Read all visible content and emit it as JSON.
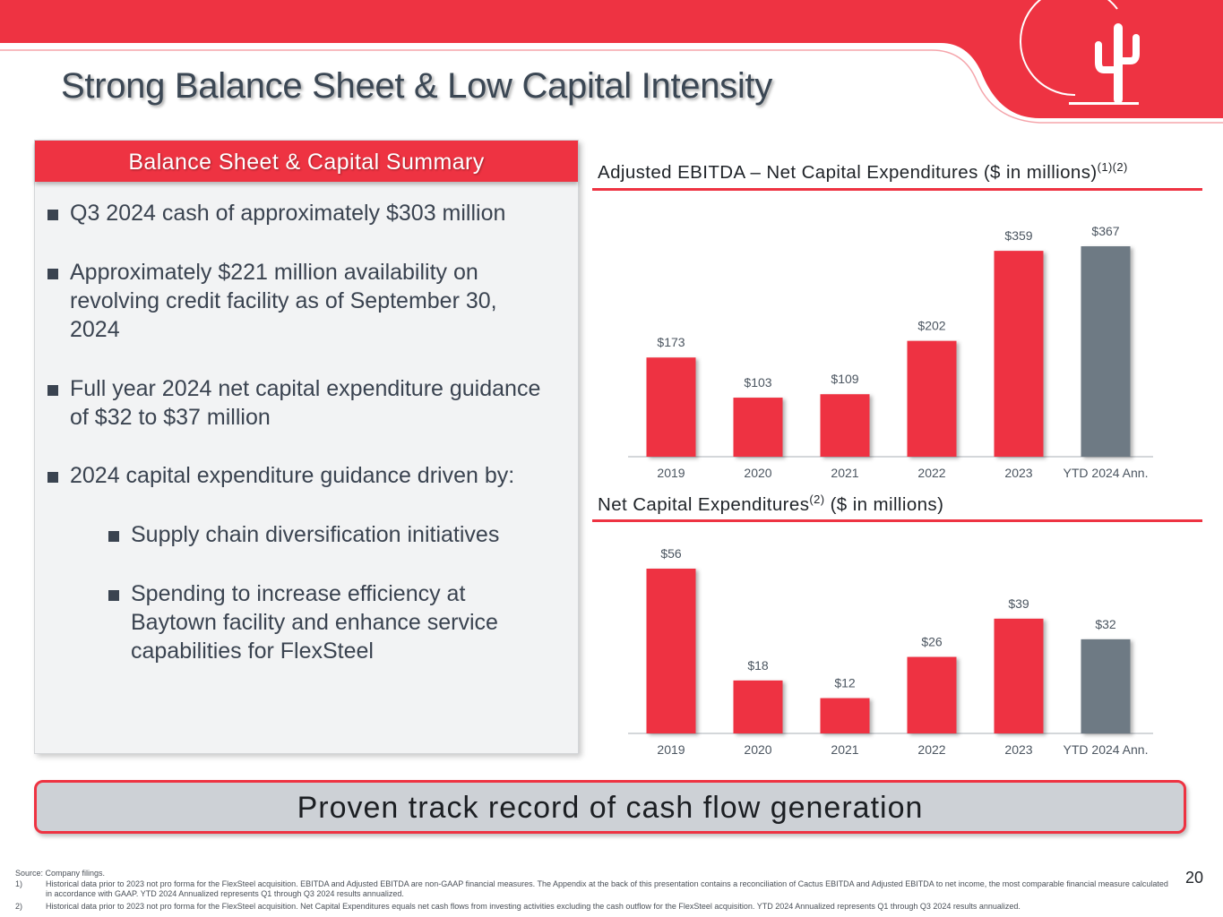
{
  "title": "Strong Balance Sheet & Low Capital Intensity",
  "colors": {
    "brand_red": "#ee3342",
    "gray_bar": "#6e7a84",
    "text": "#3a4350",
    "banner_bg": "#cdd1d6"
  },
  "logo": {
    "icon": "cactus-logo-icon"
  },
  "panel": {
    "header": "Balance Sheet & Capital Summary",
    "bullets": [
      {
        "lines": [
          "Q3 2024 cash of approximately $303 million"
        ]
      },
      {
        "lines": [
          "Approximately $221 million availability on",
          "revolving credit facility as of September 30,",
          "2024"
        ]
      },
      {
        "lines": [
          "Full year 2024 net capital expenditure guidance",
          "of $32 to $37 million"
        ]
      },
      {
        "lines": [
          "2024 capital expenditure guidance driven by:"
        ]
      }
    ],
    "sub_bullets": [
      {
        "lines": [
          "Supply chain diversification initiatives"
        ]
      },
      {
        "lines": [
          "Spending to increase efficiency at",
          "Baytown facility and enhance service",
          "capabilities for FlexSteel"
        ]
      }
    ]
  },
  "chart_data": [
    {
      "type": "bar",
      "title": "Adjusted EBITDA – Net Capital Expenditures ($ in millions)",
      "title_superscript": "(1)(2)",
      "categories": [
        "2019",
        "2020",
        "2021",
        "2022",
        "2023",
        "YTD 2024 Ann."
      ],
      "values": [
        173,
        103,
        109,
        202,
        359,
        367
      ],
      "labels": [
        "$173",
        "$103",
        "$109",
        "$202",
        "$359",
        "$367"
      ],
      "highlight_last": true,
      "ylim": [
        0,
        367
      ]
    },
    {
      "type": "bar",
      "title_pre": "Net Capital Expenditures",
      "title_superscript": "(2)",
      "title_post": " ($ in millions)",
      "categories": [
        "2019",
        "2020",
        "2021",
        "2022",
        "2023",
        "YTD 2024 Ann."
      ],
      "values": [
        56,
        18,
        12,
        26,
        39,
        32
      ],
      "labels": [
        "$56",
        "$18",
        "$12",
        "$26",
        "$39",
        "$32"
      ],
      "highlight_last": true,
      "ylim": [
        0,
        56
      ]
    }
  ],
  "banner": "Proven track record of cash flow generation",
  "footnotes": {
    "source": "Source: Company filings.",
    "items": [
      {
        "num": "1)",
        "text": "Historical data prior to 2023 not pro forma for the FlexSteel acquisition. EBITDA and Adjusted EBITDA are non-GAAP financial measures. The Appendix at the back of this presentation contains a reconciliation of Cactus EBITDA and Adjusted EBITDA to net income, the most comparable financial measure calculated in accordance with GAAP. YTD 2024 Annualized represents Q1 through Q3 2024 results annualized."
      },
      {
        "num": "2)",
        "text": "Historical data prior to 2023 not pro forma for the FlexSteel acquisition.  Net Capital Expenditures equals net cash flows from investing activities excluding the cash outflow for the FlexSteel acquisition. YTD 2024 Annualized represents Q1 through Q3 2024 results annualized."
      }
    ]
  },
  "page_number": "20"
}
